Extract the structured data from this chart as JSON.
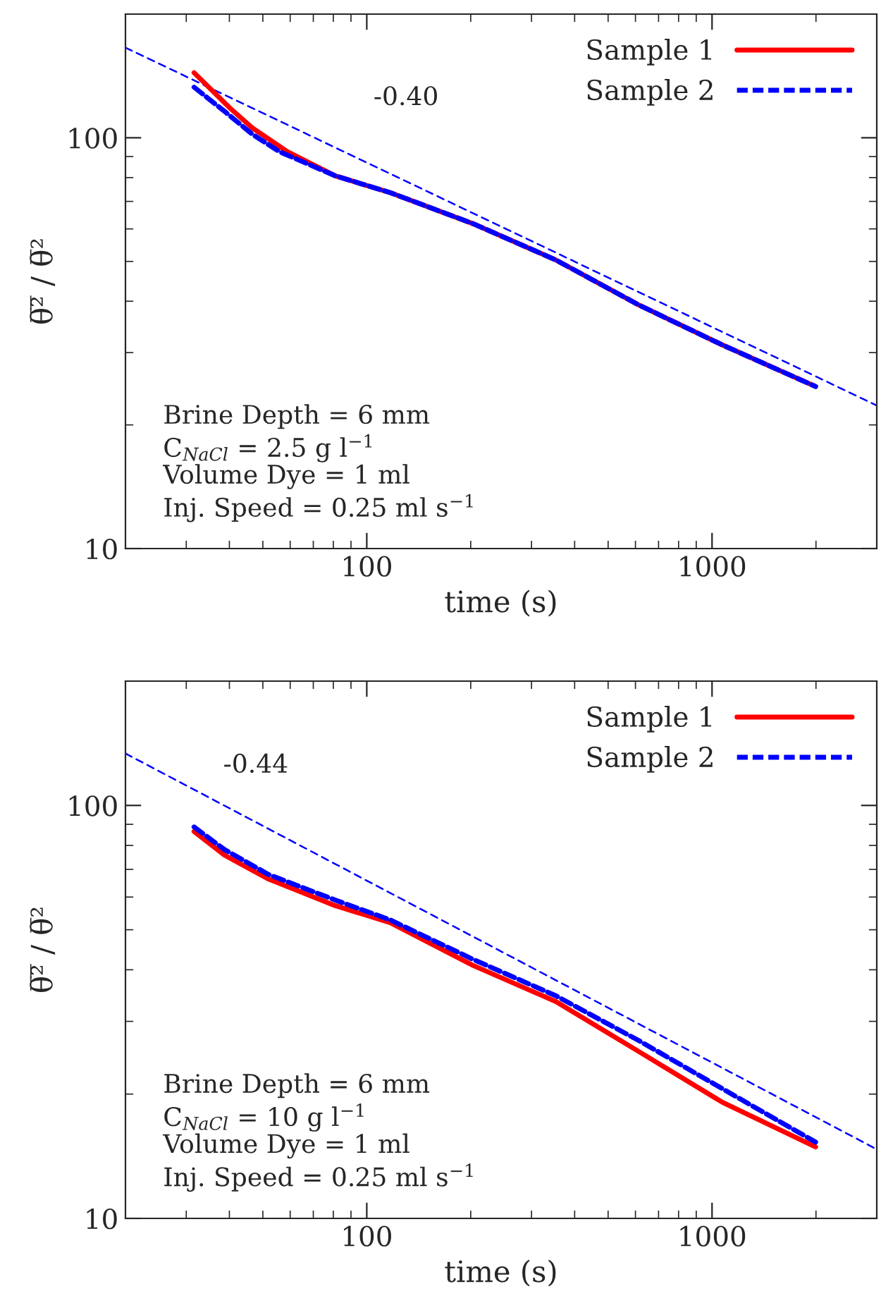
{
  "chart_data": [
    {
      "type": "line",
      "xlabel": "time (s)",
      "ylabel": "θ̅²̅ / θ̅²",
      "log": "xy",
      "xlim": [
        20,
        3000
      ],
      "ylim": [
        10,
        200
      ],
      "xticks": [
        100,
        1000
      ],
      "yticks": [
        10,
        100
      ],
      "legend": "top right",
      "grid": false,
      "annotations": [
        "-0.40",
        "Brine Depth = 6 mm",
        "C$_{NaCl}$ = 2.5 g l$^{−1}$",
        "Volume Dye = 1 ml",
        "Inj. Speed = 0.25 ml s$^{−1}$"
      ],
      "series": [
        {
          "name": "Sample 1",
          "color": "#ff0000",
          "line_style": "solid",
          "x": [
            31.6,
            40.2,
            46.6,
            59,
            81,
            117,
            203,
            353,
            616,
            1072,
            1995
          ],
          "values": [
            144,
            118,
            105.7,
            92.4,
            80.8,
            73.5,
            61.8,
            50.4,
            39.1,
            31.3,
            24.8
          ]
        },
        {
          "name": "Sample 2",
          "color": "#0000ff",
          "line_style": "dashed",
          "x": [
            31.6,
            38.7,
            46.6,
            56,
            81,
            117,
            203,
            353,
            616,
            1072,
            1995
          ],
          "values": [
            132.8,
            116,
            102,
            92.4,
            80.8,
            73.5,
            61.8,
            50.4,
            39.1,
            31.3,
            24.8
          ]
        },
        {
          "type": "line",
          "color": "#0000ff",
          "line_style": "dashed",
          "x": [
            20,
            3000
          ],
          "values": [
            165.7,
            22.3
          ]
        }
      ]
    },
    {
      "type": "line",
      "xlabel": "time (s)",
      "ylabel": "θ̅²̅ / θ̅²",
      "log": "xy",
      "xlim": [
        20,
        3000
      ],
      "ylim": [
        10,
        200
      ],
      "xticks": [
        100,
        1000
      ],
      "yticks": [
        10,
        100
      ],
      "legend": "top right",
      "grid": false,
      "annotations": [
        "-0.44",
        "Brine Depth = 6 mm",
        "C$_{NaCl}$ = 10 g l$^{−1}$",
        "Volume Dye = 1 ml",
        "Inj. Speed = 0.25 ml s$^{−1}$"
      ],
      "series": [
        {
          "name": "Sample 1",
          "color": "#ff0000",
          "line_style": "solid",
          "x": [
            31.6,
            38.7,
            52,
            81,
            117,
            203,
            353,
            616,
            1072,
            1995
          ],
          "values": [
            86.5,
            75.8,
            66.3,
            57.2,
            52.0,
            41.0,
            33.5,
            25.3,
            19.1,
            14.9
          ]
        },
        {
          "name": "Sample 2",
          "color": "#0000ff",
          "line_style": "dashed",
          "x": [
            31.6,
            38.7,
            52,
            81,
            117,
            203,
            353,
            616,
            1072,
            1995
          ],
          "values": [
            88.7,
            78.2,
            68.0,
            59.0,
            52.8,
            42.4,
            34.6,
            26.9,
            20.6,
            15.3
          ]
        },
        {
          "type": "line",
          "color": "#0000ff",
          "line_style": "dashed",
          "x": [
            20,
            3000
          ],
          "values": [
            133.6,
            14.7
          ]
        }
      ]
    }
  ]
}
